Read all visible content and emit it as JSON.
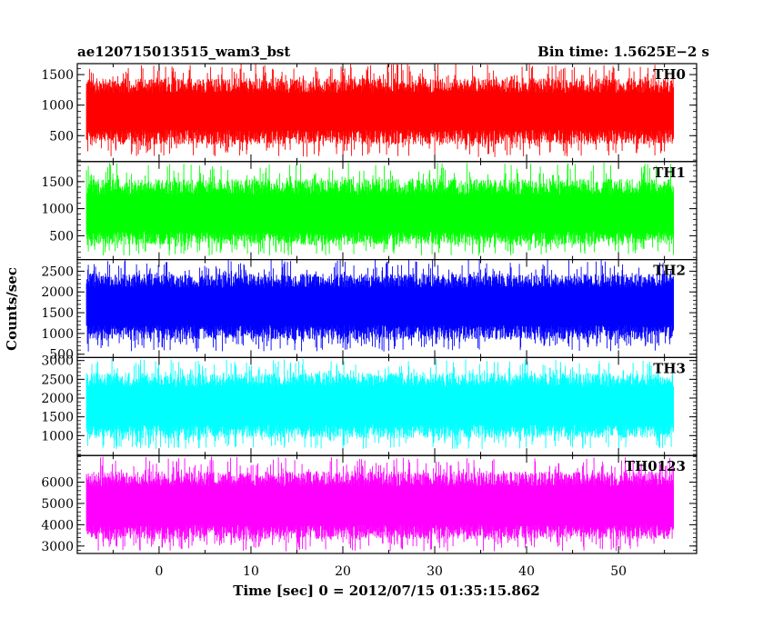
{
  "chart_data": {
    "type": "line",
    "title": "ae120715013515_wam3_bst",
    "subtitle": "Bin time: 1.5625E−2 s",
    "xlabel": "Time [sec] 0 = 2012/07/15 01:35:15.862",
    "ylabel": "Counts/sec",
    "xlim": [
      -8.9,
      58.5
    ],
    "data_x_range": [
      -7.9,
      56.0
    ],
    "xticks": [
      "0",
      "10",
      "20",
      "30",
      "40",
      "50"
    ],
    "xtick_values": [
      0,
      10,
      20,
      30,
      40,
      50
    ],
    "series": [
      {
        "name": "TH0",
        "color": "#ff0000",
        "ylim": [
          75,
          1680
        ],
        "yticks": [
          500,
          1000,
          1500
        ],
        "ytick_labels": [
          "500",
          "1000",
          "1500"
        ],
        "base": 150,
        "typ_low": 600,
        "typ_high": 1200,
        "peak": 1680
      },
      {
        "name": "TH1",
        "color": "#00ff00",
        "ylim": [
          60,
          1870
        ],
        "yticks": [
          500,
          1000,
          1500
        ],
        "ytick_labels": [
          "500",
          "1000",
          "1500"
        ],
        "base": 130,
        "typ_low": 580,
        "typ_high": 1250,
        "peak": 1850
      },
      {
        "name": "TH2",
        "color": "#0000ff",
        "ylim": [
          420,
          2780
        ],
        "yticks": [
          500,
          1000,
          1500,
          2000,
          2500
        ],
        "ytick_labels": [
          "500",
          "1000",
          "1500",
          "2000",
          "2500"
        ],
        "base": 560,
        "typ_low": 1200,
        "typ_high": 2100,
        "peak": 2780
      },
      {
        "name": "TH3",
        "color": "#00ffff",
        "ylim": [
          470,
          3080
        ],
        "yticks": [
          1000,
          1500,
          2000,
          2500,
          3000
        ],
        "ytick_labels": [
          "1000",
          "1500",
          "2000",
          "2500",
          "3000"
        ],
        "base": 640,
        "typ_low": 1300,
        "typ_high": 2300,
        "peak": 3050
      },
      {
        "name": "TH0123",
        "color": "#ff00ff",
        "ylim": [
          2650,
          7250
        ],
        "yticks": [
          3000,
          4000,
          5000,
          6000
        ],
        "ytick_labels": [
          "3000",
          "4000",
          "5000",
          "6000"
        ],
        "base": 2750,
        "typ_low": 4000,
        "typ_high": 5800,
        "peak": 7200
      }
    ]
  }
}
